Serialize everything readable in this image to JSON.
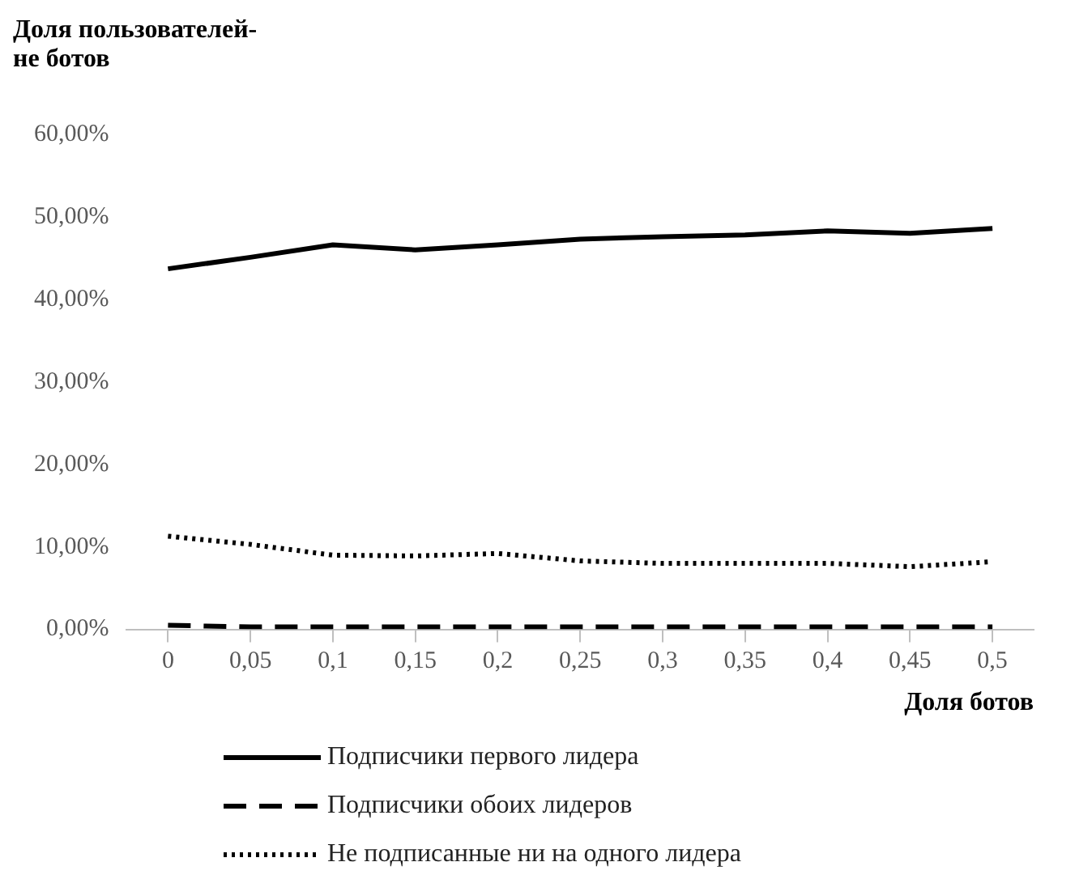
{
  "chart_data": {
    "type": "line",
    "ylabel": "Доля пользователей-не ботов",
    "xlabel": "Доля ботов",
    "categories": [
      "0",
      "0,05",
      "0,1",
      "0,15",
      "0,2",
      "0,25",
      "0,3",
      "0,35",
      "0,4",
      "0,45",
      "0,5"
    ],
    "series": [
      {
        "name": "Подписчики первого лидера",
        "color": "#000000",
        "line_style": "solid",
        "values": [
          43.7,
          45.1,
          46.6,
          46.0,
          46.6,
          47.3,
          47.6,
          47.8,
          48.3,
          48.0,
          48.6
        ]
      },
      {
        "name": "Подписчики обоих лидеров",
        "color": "#000000",
        "line_style": "dashed",
        "values": [
          0.5,
          0.3,
          0.3,
          0.3,
          0.3,
          0.3,
          0.3,
          0.3,
          0.3,
          0.3,
          0.3
        ]
      },
      {
        "name": "Не подписанные ни на одного лидера",
        "color": "#000000",
        "line_style": "dotted",
        "values": [
          11.3,
          10.3,
          9.0,
          8.9,
          9.2,
          8.3,
          8.0,
          8.0,
          8.0,
          7.6,
          8.2
        ]
      }
    ],
    "ylim": [
      0,
      60
    ],
    "yticks": [
      {
        "value": 0,
        "label": "0,00%"
      },
      {
        "value": 10,
        "label": "10,00%"
      },
      {
        "value": 20,
        "label": "20,00%"
      },
      {
        "value": 30,
        "label": "30,00%"
      },
      {
        "value": 40,
        "label": "40,00%"
      },
      {
        "value": 50,
        "label": "50,00%"
      },
      {
        "value": 60,
        "label": "60,00%"
      }
    ],
    "grid": false,
    "legend": "bottom",
    "marker": "none"
  }
}
